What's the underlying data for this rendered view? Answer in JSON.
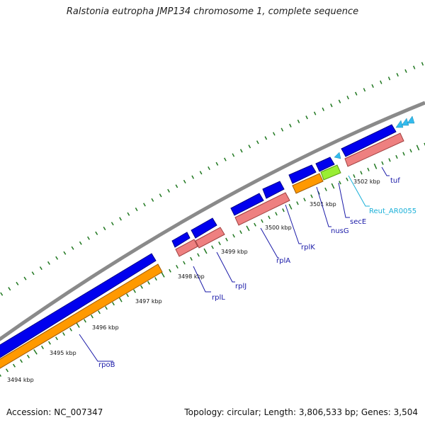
{
  "title": "Ralstonia eutropha JMP134 chromosome 1, complete sequence",
  "footer": {
    "accession": "Accession: NC_007347",
    "topology": "Topology: circular; Length: 3,806,533 bp; Genes: 3,504"
  },
  "colors": {
    "backbone": "#8a8a8a",
    "cds": "#0000ee",
    "rrna_or_gene": "#ee8080",
    "orf_orange": "#ff9900",
    "green": "#99ee33",
    "trna_cyan": "#33bbee",
    "tick": "#207820",
    "label_blue": "#1a1aa8",
    "label_cyan": "#1ab0d8"
  },
  "tick_labels": [
    {
      "text": "3494 kbp",
      "kbp": 3494
    },
    {
      "text": "3495 kbp",
      "kbp": 3495
    },
    {
      "text": "3496 kbp",
      "kbp": 3496
    },
    {
      "text": "3497 kbp",
      "kbp": 3497
    },
    {
      "text": "3498 kbp",
      "kbp": 3498
    },
    {
      "text": "3499 kbp",
      "kbp": 3499
    },
    {
      "text": "3500 kbp",
      "kbp": 3500
    },
    {
      "text": "3501 kbp",
      "kbp": 3501
    },
    {
      "text": "3502 kbp",
      "kbp": 3502
    }
  ],
  "gene_labels": [
    {
      "text": "rpoB",
      "color": "blue"
    },
    {
      "text": "rplL",
      "color": "blue"
    },
    {
      "text": "rplJ",
      "color": "blue"
    },
    {
      "text": "rplA",
      "color": "blue"
    },
    {
      "text": "rplK",
      "color": "blue"
    },
    {
      "text": "nusG",
      "color": "blue"
    },
    {
      "text": "secE",
      "color": "blue"
    },
    {
      "text": "Reut_AR0055",
      "color": "cyan"
    },
    {
      "text": "tuf",
      "color": "blue"
    }
  ]
}
